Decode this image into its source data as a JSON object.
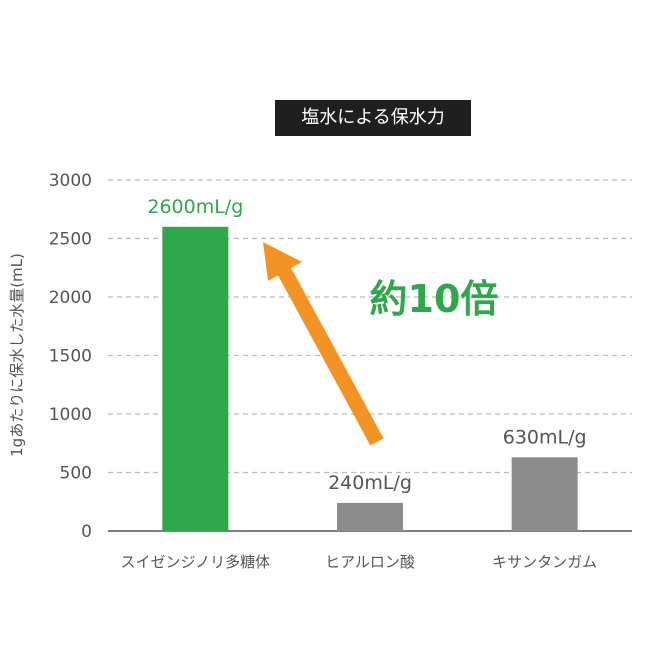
{
  "chart_data": {
    "type": "bar",
    "title": "塩水による保水力",
    "ylabel": "1gあたりに保水した水量(mL)",
    "xlabel": "",
    "ylim": [
      0,
      3000
    ],
    "yticks": [
      0,
      500,
      1000,
      1500,
      2000,
      2500,
      3000
    ],
    "grid": true,
    "categories": [
      "スイゼンジノリ多糖体",
      "ヒアルロン酸",
      "キサンタンガム"
    ],
    "values": [
      2600,
      240,
      630
    ],
    "value_labels": [
      "2600mL/g",
      "240mL/g",
      "630mL/g"
    ],
    "bar_colors": [
      "#2ea84a",
      "#8c8c8c",
      "#8c8c8c"
    ],
    "label_colors": [
      "#2ea84a",
      "#555555",
      "#555555"
    ],
    "annotation": {
      "text": "約10倍",
      "color": "#2ea84a",
      "arrow_color": "#f39323"
    }
  }
}
